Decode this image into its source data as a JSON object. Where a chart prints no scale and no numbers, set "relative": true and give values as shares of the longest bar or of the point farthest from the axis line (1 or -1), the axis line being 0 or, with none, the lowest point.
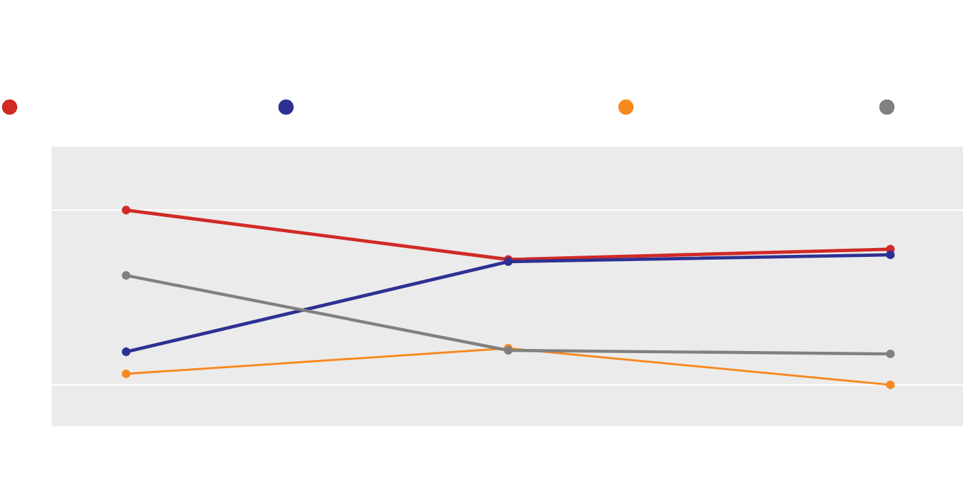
{
  "chart_data": {
    "type": "line",
    "relative": true,
    "categories": [
      null,
      null,
      null
    ],
    "series": [
      {
        "color": "#d12a26",
        "values": [
          1,
          0.717,
          0.776
        ]
      },
      {
        "color": "#2e3192",
        "values": [
          0.189,
          0.705,
          0.744
        ]
      },
      {
        "color": "#f7891f",
        "values": [
          0.063,
          0.209,
          0
        ]
      },
      {
        "color": "#808080",
        "values": [
          0.626,
          0.197,
          0.177
        ]
      }
    ],
    "marker": "circle",
    "line_style": "solid",
    "grid": "y"
  }
}
